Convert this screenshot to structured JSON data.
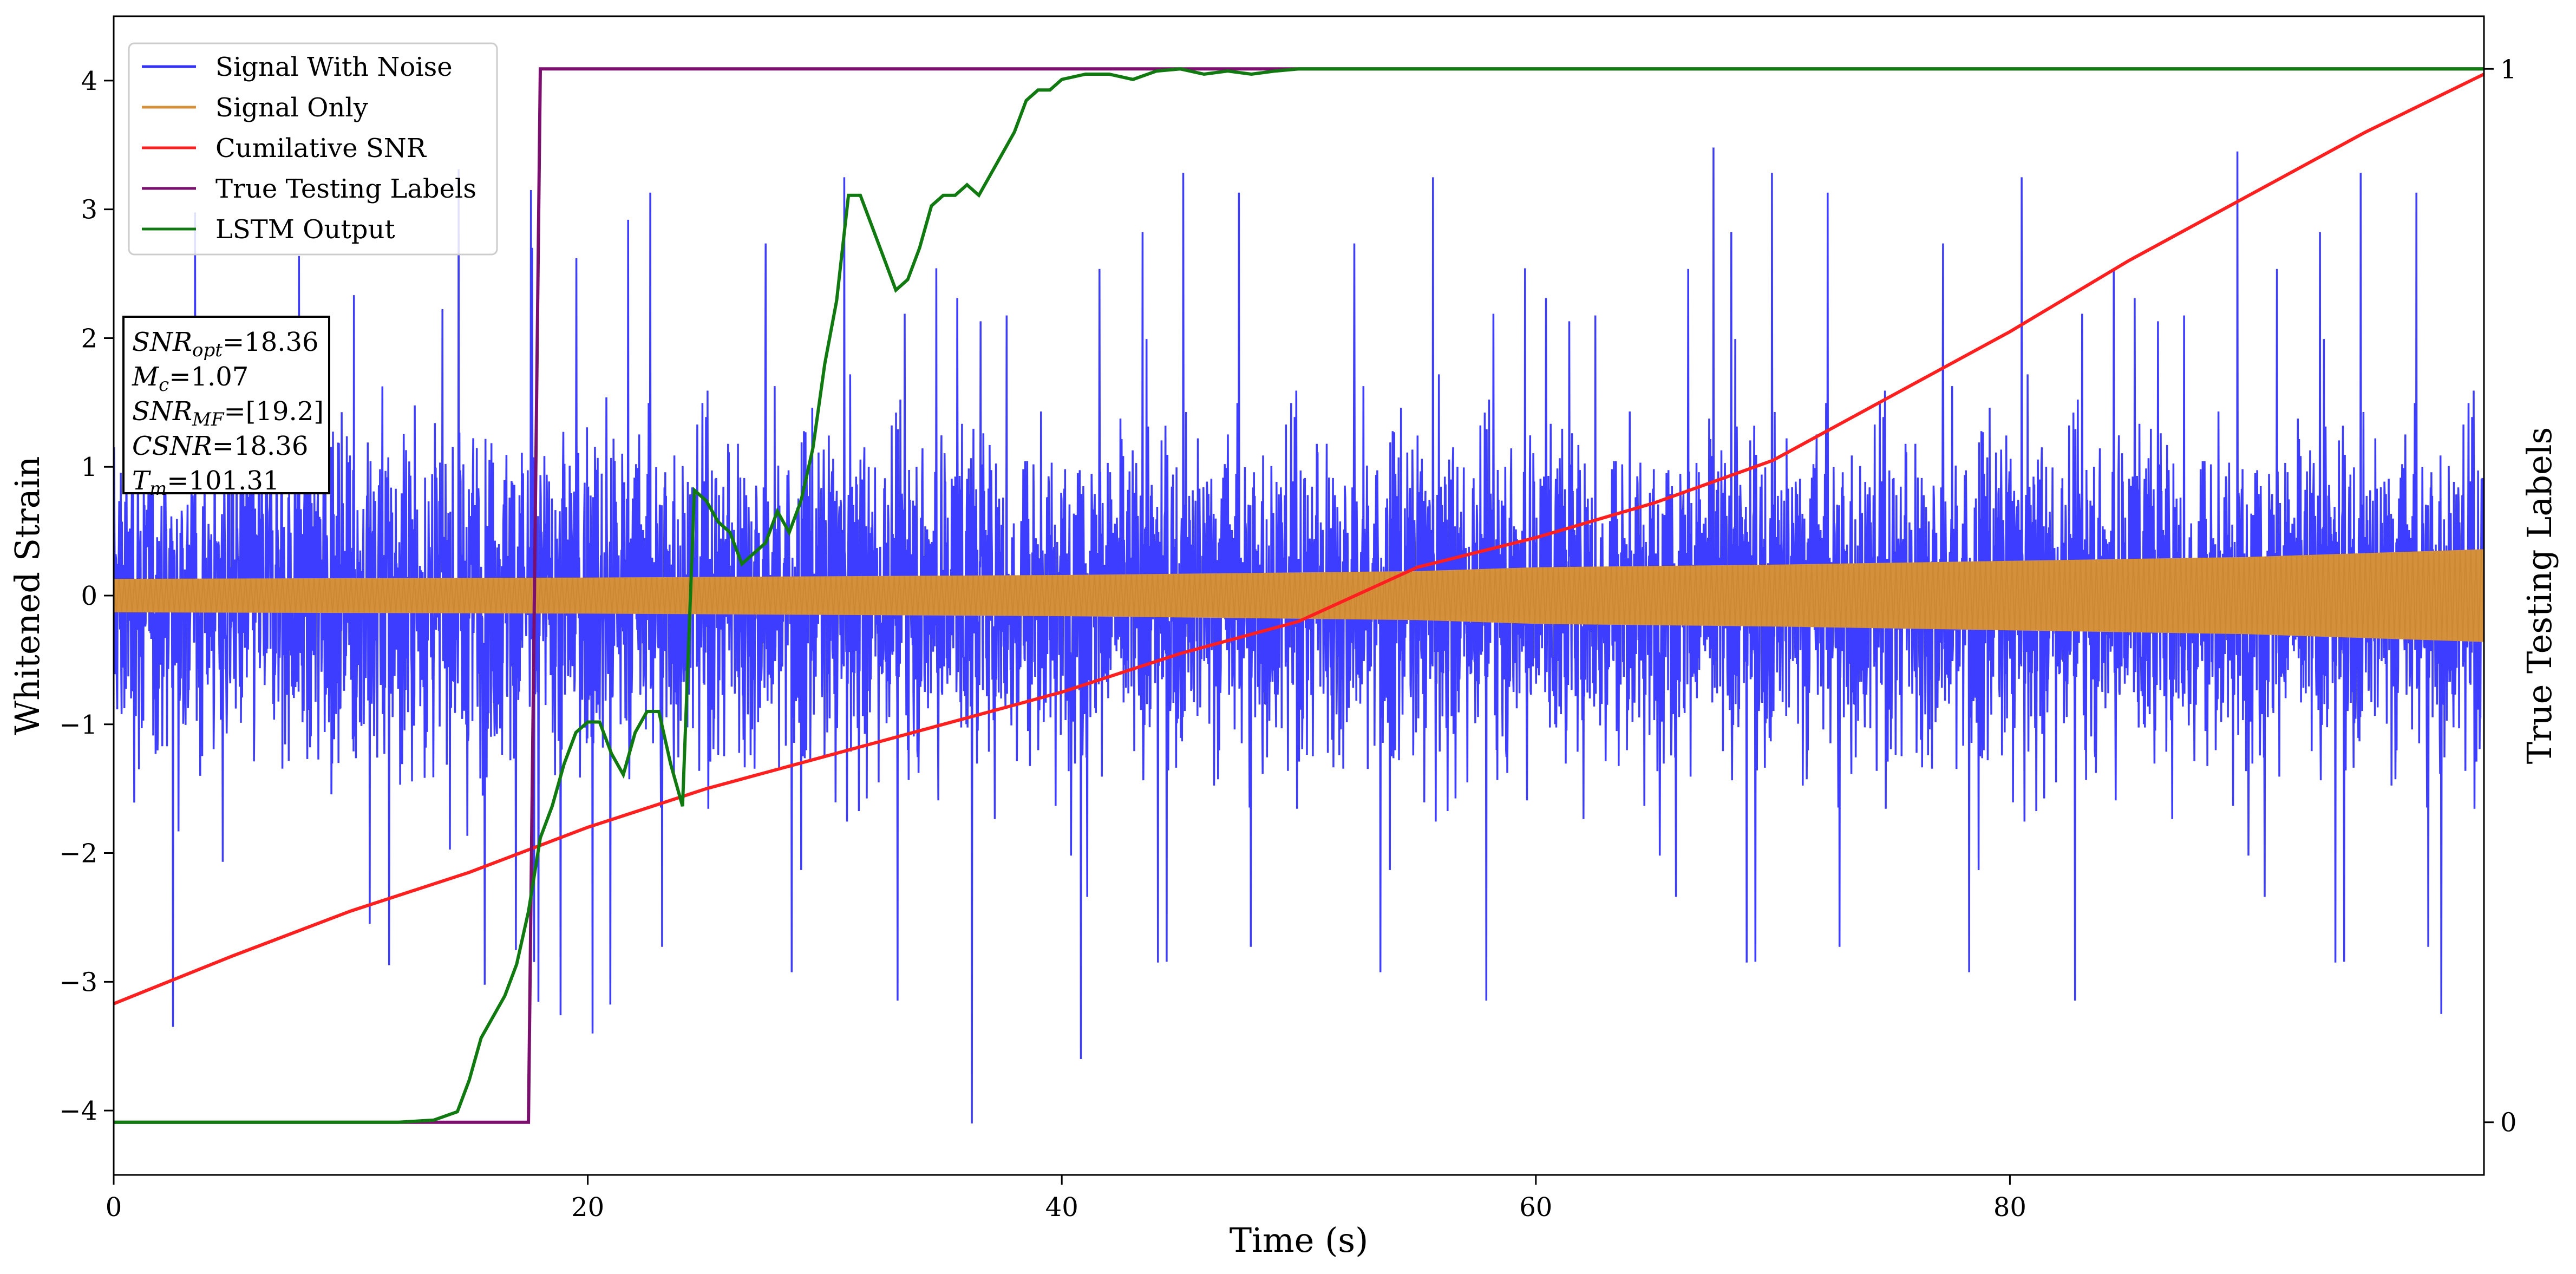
{
  "chart_data": {
    "type": "line",
    "title": "",
    "xlabel": "Time (s)",
    "ylabel": "Whitened Strain",
    "y2label": "True Testing Labels",
    "xlim": [
      0,
      100
    ],
    "ylim": [
      -4.5,
      4.5
    ],
    "y2lim": [
      -0.05,
      1.05
    ],
    "x_ticks": [
      "0",
      "20",
      "40",
      "60",
      "80"
    ],
    "y_ticks": [
      "−4",
      "−3",
      "−2",
      "−1",
      "0",
      "1",
      "2",
      "3",
      "4"
    ],
    "y2_ticks": [
      "0",
      "1"
    ],
    "grid": false,
    "legend_position": "top-left",
    "legend": [
      "Signal With Noise",
      "Signal Only",
      "Cumilative SNR",
      "True Testing Labels",
      "LSTM Output"
    ],
    "colors": {
      "Signal With Noise": "#3333ff",
      "Signal Only": "#d4903a",
      "Cumilative SNR": "#ff1f1f",
      "True Testing Labels": "#7b0f6e",
      "LSTM Output": "#107a10"
    },
    "annotation": {
      "lines": [
        {
          "italic": "SNR",
          "sub": "opt",
          "rest": "=18.36"
        },
        {
          "italic": "M",
          "sub": "c",
          "rest": "=1.07"
        },
        {
          "italic": "SNR",
          "sub": "MF",
          "rest": "=[19.2]"
        },
        {
          "italic": "CSNR",
          "sub": "",
          "rest": "=18.36"
        },
        {
          "italic": "T",
          "sub": "m",
          "rest": "=101.31"
        }
      ]
    },
    "series": [
      {
        "name": "Signal With Noise",
        "axis": "left",
        "kind": "noise",
        "x_range": [
          0,
          100
        ],
        "typical_range": [
          -1.6,
          2.3
        ],
        "extremes": [
          [
            36.2,
            -4.1
          ],
          [
            67.5,
            3.48
          ],
          [
            40.8,
            -3.6
          ],
          [
            17.6,
            3.15
          ],
          [
            2.5,
            -3.35
          ],
          [
            98.2,
            -3.25
          ],
          [
            89.6,
            3.45
          ]
        ]
      },
      {
        "name": "Signal Only",
        "axis": "left",
        "kind": "band",
        "x": [
          0,
          20,
          40,
          50,
          55,
          60,
          70,
          80,
          90,
          100
        ],
        "upper": [
          0.13,
          0.14,
          0.16,
          0.18,
          0.19,
          0.22,
          0.24,
          0.27,
          0.3,
          0.36
        ],
        "lower": [
          -0.13,
          -0.14,
          -0.16,
          -0.18,
          -0.19,
          -0.22,
          -0.24,
          -0.27,
          -0.3,
          -0.36
        ]
      },
      {
        "name": "Cumilative SNR",
        "axis": "left",
        "x": [
          0,
          5,
          10,
          15,
          20,
          25,
          30,
          35,
          40,
          45,
          50,
          55,
          60,
          65,
          70,
          75,
          80,
          85,
          90,
          95,
          100
        ],
        "y": [
          -3.17,
          -2.8,
          -2.45,
          -2.15,
          -1.8,
          -1.5,
          -1.25,
          -1.0,
          -0.75,
          -0.45,
          -0.2,
          0.22,
          0.45,
          0.72,
          1.05,
          1.55,
          2.05,
          2.6,
          3.1,
          3.6,
          4.05
        ]
      },
      {
        "name": "True Testing Labels",
        "axis": "right",
        "x": [
          0,
          17.5,
          18.0,
          100
        ],
        "y": [
          0,
          0,
          1,
          1
        ]
      },
      {
        "name": "LSTM Output",
        "axis": "right",
        "x": [
          0,
          12,
          13.5,
          14.5,
          15,
          15.5,
          16,
          16.5,
          17,
          17.5,
          18,
          18.5,
          19,
          19.5,
          20,
          20.5,
          21,
          21.5,
          22,
          22.5,
          23,
          23.5,
          24,
          24.5,
          25,
          25.5,
          26,
          26.5,
          27,
          27.5,
          28,
          28.5,
          29,
          29.5,
          30,
          30.5,
          31,
          31.5,
          32,
          32.5,
          33,
          33.5,
          34,
          34.5,
          35,
          35.5,
          36,
          36.5,
          37,
          37.5,
          38,
          38.5,
          39,
          39.5,
          40,
          41,
          42,
          43,
          44,
          45,
          46,
          47,
          48,
          49,
          50,
          52,
          55,
          60,
          70,
          80,
          90,
          100
        ],
        "y": [
          0,
          0,
          0.002,
          0.01,
          0.04,
          0.08,
          0.1,
          0.12,
          0.15,
          0.2,
          0.27,
          0.3,
          0.34,
          0.37,
          0.38,
          0.38,
          0.35,
          0.33,
          0.37,
          0.39,
          0.39,
          0.34,
          0.3,
          0.6,
          0.59,
          0.57,
          0.56,
          0.53,
          0.54,
          0.55,
          0.58,
          0.56,
          0.59,
          0.64,
          0.72,
          0.78,
          0.88,
          0.88,
          0.85,
          0.82,
          0.79,
          0.8,
          0.83,
          0.87,
          0.88,
          0.88,
          0.89,
          0.88,
          0.9,
          0.92,
          0.94,
          0.97,
          0.98,
          0.98,
          0.99,
          0.995,
          0.995,
          0.99,
          0.998,
          1.0,
          0.995,
          0.998,
          0.995,
          0.998,
          1.0,
          1.0,
          1.0,
          1.0,
          1.0,
          1.0,
          1.0,
          1.0
        ]
      }
    ]
  }
}
